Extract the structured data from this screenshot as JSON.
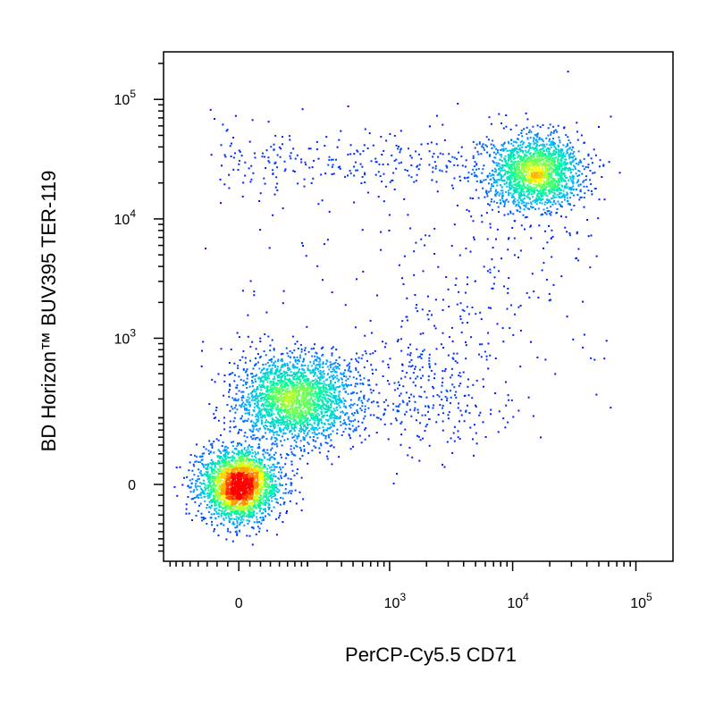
{
  "chart_data": {
    "type": "scatter",
    "title": "",
    "xlabel": "PerCP-Cy5.5 CD71",
    "ylabel": "BD Horizon™ BUV395 TER-119",
    "x_scale": "biexponential",
    "y_scale": "biexponential",
    "xlim": [
      -230,
      200000
    ],
    "ylim": [
      -250,
      250000
    ],
    "x_ticks": [
      {
        "mantissa": "0",
        "exp": ""
      },
      {
        "mantissa": "10",
        "exp": "3"
      },
      {
        "mantissa": "10",
        "exp": "4"
      },
      {
        "mantissa": "10",
        "exp": "5"
      }
    ],
    "y_ticks": [
      {
        "mantissa": "0",
        "exp": ""
      },
      {
        "mantissa": "10",
        "exp": "3"
      },
      {
        "mantissa": "10",
        "exp": "4"
      },
      {
        "mantissa": "10",
        "exp": "5"
      }
    ],
    "color_scale": [
      "#0000ff",
      "#00b4ff",
      "#00ff96",
      "#ffff00",
      "#ff0000"
    ],
    "populations": [
      {
        "x_center": 0,
        "y_center": 0,
        "density": "highest"
      },
      {
        "x_center": 150,
        "y_center": 300,
        "density": "high"
      },
      {
        "x_center": 15000,
        "y_center": 25000,
        "density": "high"
      },
      {
        "x_center": 1500,
        "y_center": 300,
        "density": "low"
      }
    ],
    "grid": false
  }
}
